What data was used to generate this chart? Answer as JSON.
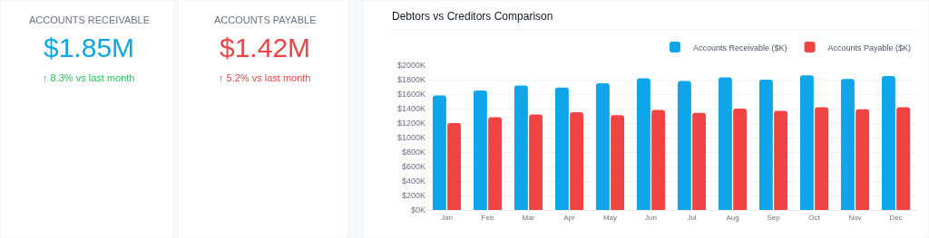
{
  "chart_data": [
    {
      "type": "other",
      "title": "ACCOUNTS RECEIVABLE",
      "annotations": [
        "$1.85M",
        "↑ 8.3% vs last month"
      ],
      "colors": [
        "#0ea5e9",
        "#22c55e"
      ]
    },
    {
      "type": "other",
      "title": "ACCOUNTS PAYABLE",
      "annotations": [
        "$1.42M",
        "↑ 5.2% vs last month"
      ],
      "colors": [
        "#ef4444",
        "#ef4444"
      ]
    },
    {
      "type": "bar",
      "title": "Debtors vs Creditors Comparison",
      "categories": [
        "Jan",
        "Feb",
        "Mar",
        "Apr",
        "May",
        "Jun",
        "Jul",
        "Aug",
        "Sep",
        "Oct",
        "Nov",
        "Dec"
      ],
      "series": [
        {
          "name": "Accounts Receivable ($K)",
          "color": "#0ea5e9",
          "values": [
            1580,
            1650,
            1720,
            1690,
            1750,
            1820,
            1780,
            1830,
            1800,
            1860,
            1810,
            1850
          ]
        },
        {
          "name": "Accounts Payable ($K)",
          "color": "#ef4444",
          "values": [
            1200,
            1280,
            1320,
            1350,
            1310,
            1380,
            1340,
            1400,
            1370,
            1420,
            1390,
            1420
          ]
        }
      ],
      "ylim": [
        0,
        2000
      ],
      "yticks": [
        {
          "value": 0,
          "label": "$0K"
        },
        {
          "value": 200,
          "label": "$200K"
        },
        {
          "value": 400,
          "label": "$400K"
        },
        {
          "value": 600,
          "label": "$600K"
        },
        {
          "value": 800,
          "label": "$800K"
        },
        {
          "value": 1000,
          "label": "$1000K"
        },
        {
          "value": 1200,
          "label": "$1200K"
        },
        {
          "value": 1400,
          "label": "$1400K"
        },
        {
          "value": 1600,
          "label": "$1600K"
        },
        {
          "value": 1800,
          "label": "$1800K"
        },
        {
          "value": 2000,
          "label": "$2000K"
        }
      ],
      "grid": "y",
      "legend": "top right"
    }
  ]
}
